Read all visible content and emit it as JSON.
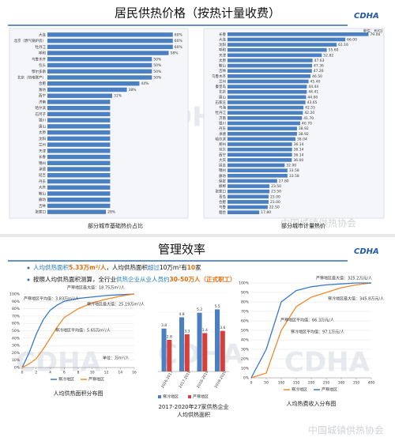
{
  "logo": "CDHA",
  "watermark": "中国城镇供热协会",
  "slides": [
    {
      "title": "居民供热价格（按热计量收费）"
    },
    {
      "title": "管理效率",
      "bullets": [
        [
          "人均供热面积",
          "5.33万m²/人",
          "，人均供热面积",
          "超过",
          "10万m²有",
          "10",
          "家"
        ],
        [
          "按照人均供热面积测算，全行业",
          "供热企业从业人员约",
          "30-50万人（正式职工）"
        ]
      ]
    }
  ],
  "chart_data": [
    {
      "type": "hbar",
      "caption": "部分城市基础热价占比",
      "color": "#4a7fc1",
      "xlim": [
        0,
        65
      ],
      "categories": [
        "大连",
        "北京（燃气锅炉房）",
        "牡丹江",
        "呼和",
        "乌鲁木齐",
        "包头",
        "鄂尔多斯",
        "北京（热电联产）",
        "合肥",
        "潍坊",
        "西宁",
        "济南",
        "哈尔滨",
        "石河子",
        "银川",
        "唐山",
        "太原",
        "沈阳",
        "兰州",
        "天津",
        "长春",
        "锦州",
        "承德",
        "延吉",
        "丹东",
        "大庆",
        "鞍山",
        "廊坊",
        "吉林",
        "张家口"
      ],
      "values": [
        60,
        60,
        60,
        58,
        50,
        50,
        50,
        50,
        44,
        38,
        31,
        30,
        30,
        30,
        30,
        30,
        30,
        30,
        30,
        30,
        30,
        30,
        30,
        30,
        30,
        30,
        30,
        30,
        30,
        28
      ],
      "value_labels": [
        "60%",
        "60%",
        "60%",
        "58%",
        "50%",
        "50%",
        "50%",
        "50%",
        "44%",
        "38%",
        "31%",
        null,
        null,
        null,
        null,
        null,
        null,
        null,
        null,
        null,
        null,
        null,
        null,
        null,
        null,
        null,
        null,
        null,
        null,
        "28%"
      ]
    },
    {
      "type": "hbar",
      "caption": "部分城市计量热价",
      "unit": "单位：元/GJ",
      "color": "#4a7fc1",
      "xlim": [
        0,
        85
      ],
      "categories": [
        "长春",
        "大连",
        "沈阳",
        "呼和",
        "天津",
        "太原",
        "鞍山",
        "吉林",
        "乌鲁木齐",
        "兰州",
        "秦皇岛",
        "北京",
        "唐山",
        "石家庄",
        "乌海",
        "牡丹江",
        "济南",
        "银川",
        "丹东",
        "承德",
        "哈尔滨",
        "郑州",
        "包头",
        "西宁",
        "大庆",
        "延吉",
        "锦州",
        "廊坊",
        "保定",
        "邯郸",
        "张家口",
        "青岛",
        "合肥",
        "乌鲁",
        "烟台"
      ],
      "values": [
        79,
        66,
        61.16,
        55.6,
        52.82,
        47.63,
        47.36,
        47.26,
        46.5,
        45.4,
        44.44,
        44.41,
        44,
        43.65,
        42.55,
        42.2,
        41.7,
        40.7,
        38.92,
        38.92,
        38.04,
        36.14,
        36.14,
        36.14,
        36,
        32,
        33.58,
        33.58,
        27.8,
        23.5,
        23.5,
        23,
        23,
        22.5,
        17.8
      ],
      "value_labels": [
        "79.00",
        "66.00",
        "61.16",
        "55.60",
        "52.82",
        "47.63",
        "47.36",
        "47.26",
        "46.50",
        "45.40",
        "44.44",
        "44.41",
        "44.00",
        "43.65",
        "42.55",
        "42.20",
        "41.70",
        "40.70",
        "38.92",
        "38.92",
        "38.04",
        "36.14",
        "36.14",
        "36.14",
        "36.00",
        "32.00",
        "33.58",
        "33.58",
        "27.80",
        "23.50",
        "23.50",
        "23.00",
        "23.00",
        "22.50",
        "17.80"
      ]
    },
    {
      "type": "line",
      "caption": "人均供热面积分布图",
      "unit": "单位：万m²/人",
      "x": [
        0,
        1,
        2,
        3,
        4,
        5,
        6,
        8,
        10,
        12,
        14,
        16
      ],
      "xlim": [
        0,
        16
      ],
      "xticks": [
        0,
        2,
        4,
        6,
        8,
        10,
        12,
        14,
        16
      ],
      "ylim": [
        0,
        100
      ],
      "yticks": [
        {
          "value": 0,
          "label": "0%"
        },
        {
          "value": 10,
          "label": "10%"
        },
        {
          "value": 20,
          "label": "20%"
        },
        {
          "value": 30,
          "label": "30%"
        },
        {
          "value": 40,
          "label": "40%"
        },
        {
          "value": 50,
          "label": "50%"
        },
        {
          "value": 60,
          "label": "60%"
        },
        {
          "value": 70,
          "label": "70%"
        },
        {
          "value": 80,
          "label": "80%"
        },
        {
          "value": 90,
          "label": "90%"
        },
        {
          "value": 100,
          "label": "100%"
        }
      ],
      "series": [
        {
          "name": "寒冷地区",
          "color": "#3a78c9",
          "values": [
            0,
            20,
            45,
            65,
            78,
            85,
            90,
            94,
            96,
            98,
            99,
            100
          ]
        },
        {
          "name": "严寒地区",
          "color": "#f08a2c",
          "values": [
            0,
            5,
            12,
            25,
            40,
            55,
            68,
            80,
            88,
            93,
            97,
            100
          ]
        }
      ],
      "annotations": [
        "严寒地区最大值：18.75万m²/人",
        "寒冷地区最大值：25.19万m²/人",
        "严寒地区平均值：3.83万m²/人",
        "寒冷地区平均值：5.65万m²/人"
      ]
    },
    {
      "type": "groupbar",
      "caption": [
        "2017-2020年27家供热企业",
        "人均供热面积"
      ],
      "ylim": [
        0,
        7
      ],
      "categories": [
        "2016-2017",
        "2017-2018",
        "2018-2019",
        "2019-2020"
      ],
      "series": [
        {
          "name": "寒冷地区",
          "color": "#4a7fc1",
          "values": [
            3.8,
            4.8,
            5.2,
            5.5
          ]
        },
        {
          "name": "严寒地区",
          "color": "#d6403a",
          "values": [
            2.8,
            3.3,
            3.4,
            3.6
          ]
        }
      ]
    },
    {
      "type": "line",
      "caption": "人均热费收入分布图",
      "x": [
        0,
        50,
        100,
        150,
        200,
        250,
        300,
        350,
        400
      ],
      "xlim": [
        0,
        400
      ],
      "xticks": [
        0,
        50,
        100,
        150,
        200,
        250,
        300,
        350,
        400
      ],
      "ylim": [
        0,
        100
      ],
      "yticks": [
        {
          "value": 0,
          "label": "0%"
        },
        {
          "value": 10,
          "label": "10%"
        },
        {
          "value": 20,
          "label": "20%"
        },
        {
          "value": 30,
          "label": "30%"
        },
        {
          "value": 40,
          "label": "40%"
        },
        {
          "value": 50,
          "label": "50%"
        },
        {
          "value": 60,
          "label": "60%"
        },
        {
          "value": 70,
          "label": "70%"
        },
        {
          "value": 80,
          "label": "80%"
        },
        {
          "value": 90,
          "label": "90%"
        },
        {
          "value": 100,
          "label": "100%"
        }
      ],
      "series": [
        {
          "name": "寒冷地区",
          "color": "#f08a2c",
          "values": [
            0,
            5,
            50,
            75,
            85,
            90,
            95,
            98,
            100
          ]
        },
        {
          "name": "严寒地区",
          "color": "#3a78c9",
          "values": [
            0,
            30,
            80,
            92,
            96,
            98,
            99,
            100,
            100
          ]
        }
      ],
      "annotations": [
        "严寒地区最大值：325.2万元/人",
        "寒冷地区最大值：345.8万元/人",
        "严寒地区平均值：66.3万元/人",
        "寒冷地区平均值：97.1万元/人"
      ]
    }
  ]
}
